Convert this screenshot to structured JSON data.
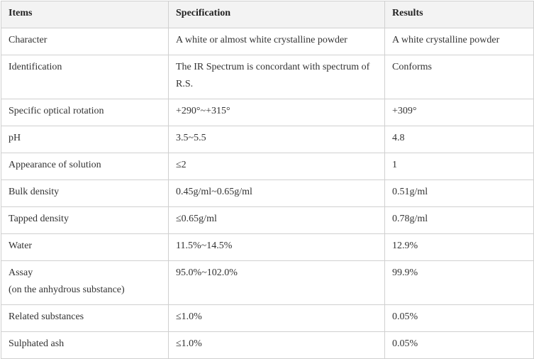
{
  "table": {
    "header": [
      "Items",
      "Specification",
      "Results"
    ],
    "rows": [
      [
        "Character",
        "A white or almost white crystalline powder",
        "A white crystalline powder"
      ],
      [
        "Identification",
        "The IR Spectrum is concordant with spectrum of R.S.",
        "Conforms"
      ],
      [
        "Specific optical rotation",
        "+290°~+315°",
        "+309°"
      ],
      [
        "pH",
        "3.5~5.5",
        "4.8"
      ],
      [
        "Appearance of solution",
        "≤2",
        "1"
      ],
      [
        "Bulk density",
        "0.45g/ml~0.65g/ml",
        "0.51g/ml"
      ],
      [
        "Tapped density",
        "≤0.65g/ml",
        "0.78g/ml"
      ],
      [
        "Water",
        "11.5%~14.5%",
        "12.9%"
      ],
      [
        [
          "Assay",
          "(on the anhydrous substance)"
        ],
        "95.0%~102.0%",
        "99.9%"
      ],
      [
        "Related substances",
        "≤1.0%",
        "0.05%"
      ],
      [
        "Sulphated ash",
        "≤1.0%",
        "0.05%"
      ]
    ]
  }
}
